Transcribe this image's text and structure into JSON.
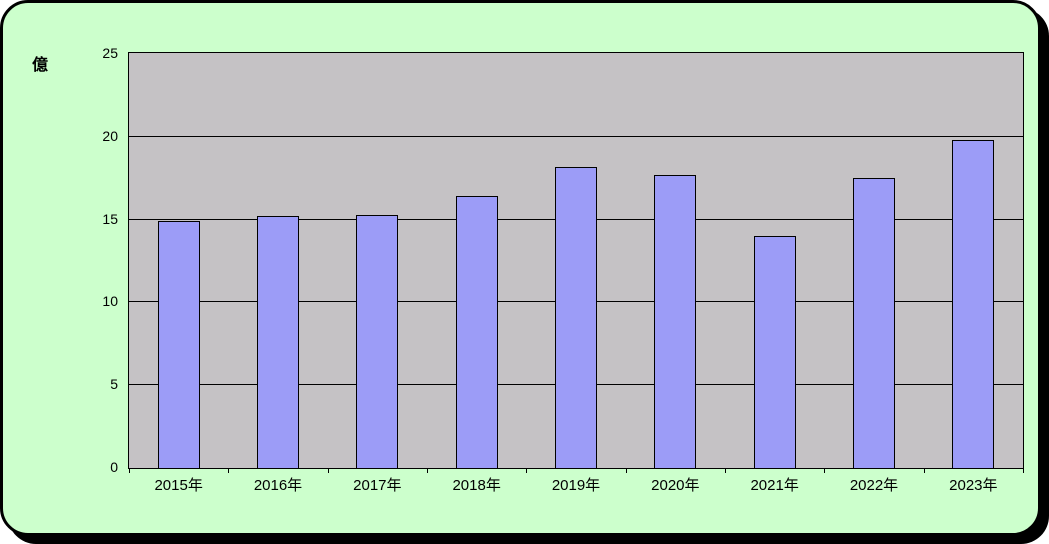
{
  "frame": {
    "background_color": "#CCFFCC",
    "border_color": "#000000",
    "shadow_color": "#000000"
  },
  "chart_data": {
    "type": "bar",
    "title": "",
    "unit_label": "億",
    "categories": [
      "2015年",
      "2016年",
      "2017年",
      "2018年",
      "2019年",
      "2020年",
      "2021年",
      "2022年",
      "2023年"
    ],
    "values": [
      14.9,
      15.2,
      15.3,
      16.4,
      18.2,
      17.7,
      14.0,
      17.5,
      19.8
    ],
    "ylim": [
      0,
      25
    ],
    "yticks": [
      0,
      5,
      10,
      15,
      20,
      25
    ],
    "gridline_values": [
      5,
      10,
      15,
      20
    ],
    "grid": "horizontal-major",
    "legend_position": "none",
    "colors": {
      "bar_fill": "#9C9CF7",
      "bar_border": "#000000",
      "plot_background": "#C5C2C5",
      "gridline": "#000000",
      "axis": "#000000",
      "text": "#000000"
    }
  }
}
